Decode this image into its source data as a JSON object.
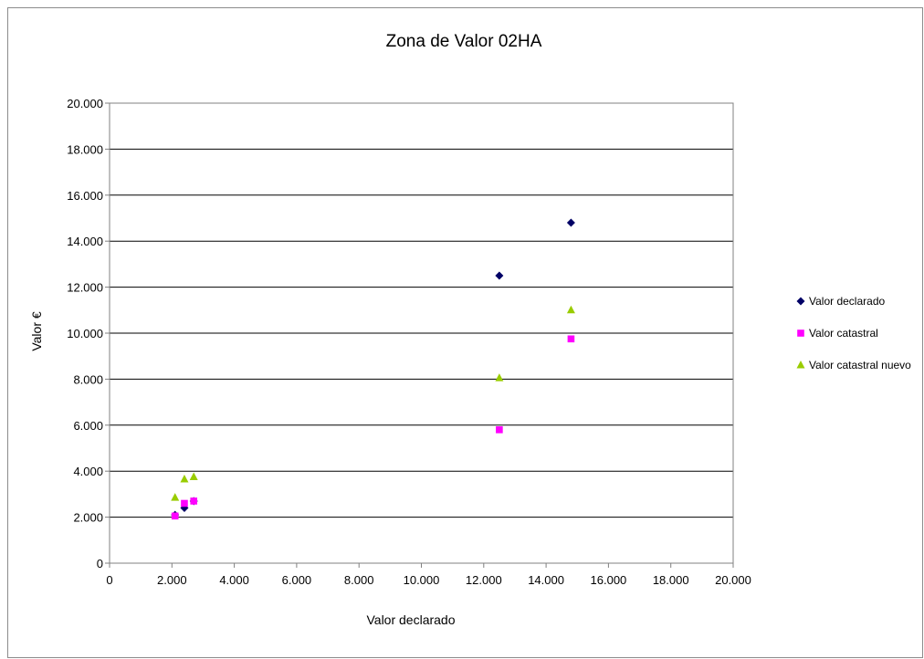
{
  "chart_data": {
    "type": "scatter",
    "title": "Zona de Valor 02HA",
    "xlabel": "Valor declarado",
    "ylabel": "Valor €",
    "xlim": [
      0,
      20000
    ],
    "ylim": [
      0,
      20000
    ],
    "x_ticks": [
      0,
      2000,
      4000,
      6000,
      8000,
      10000,
      12000,
      14000,
      16000,
      18000,
      20000
    ],
    "x_tick_labels": [
      "0",
      "2.000",
      "4.000",
      "6.000",
      "8.000",
      "10.000",
      "12.000",
      "14.000",
      "16.000",
      "18.000",
      "20.000"
    ],
    "y_ticks": [
      0,
      2000,
      4000,
      6000,
      8000,
      10000,
      12000,
      14000,
      16000,
      18000,
      20000
    ],
    "y_tick_labels": [
      "0",
      "2.000",
      "4.000",
      "6.000",
      "8.000",
      "10.000",
      "12.000",
      "14.000",
      "16.000",
      "18.000",
      "20.000"
    ],
    "grid": "horizontal",
    "legend_position": "right",
    "series": [
      {
        "name": "Valor declarado",
        "marker": "diamond",
        "color": "#000066",
        "points": [
          [
            2100,
            2100
          ],
          [
            2400,
            2400
          ],
          [
            2700,
            2700
          ],
          [
            12500,
            12500
          ],
          [
            14800,
            14800
          ]
        ]
      },
      {
        "name": "Valor catastral",
        "marker": "square",
        "color": "#ff00ff",
        "points": [
          [
            2100,
            2050
          ],
          [
            2400,
            2600
          ],
          [
            2700,
            2700
          ],
          [
            12500,
            5800
          ],
          [
            14800,
            9750
          ]
        ]
      },
      {
        "name": "Valor catastral nuevo",
        "marker": "triangle",
        "color": "#99cc00",
        "points": [
          [
            2100,
            2850
          ],
          [
            2400,
            3650
          ],
          [
            2700,
            3750
          ],
          [
            12500,
            8050
          ],
          [
            14800,
            11000
          ]
        ]
      }
    ]
  }
}
